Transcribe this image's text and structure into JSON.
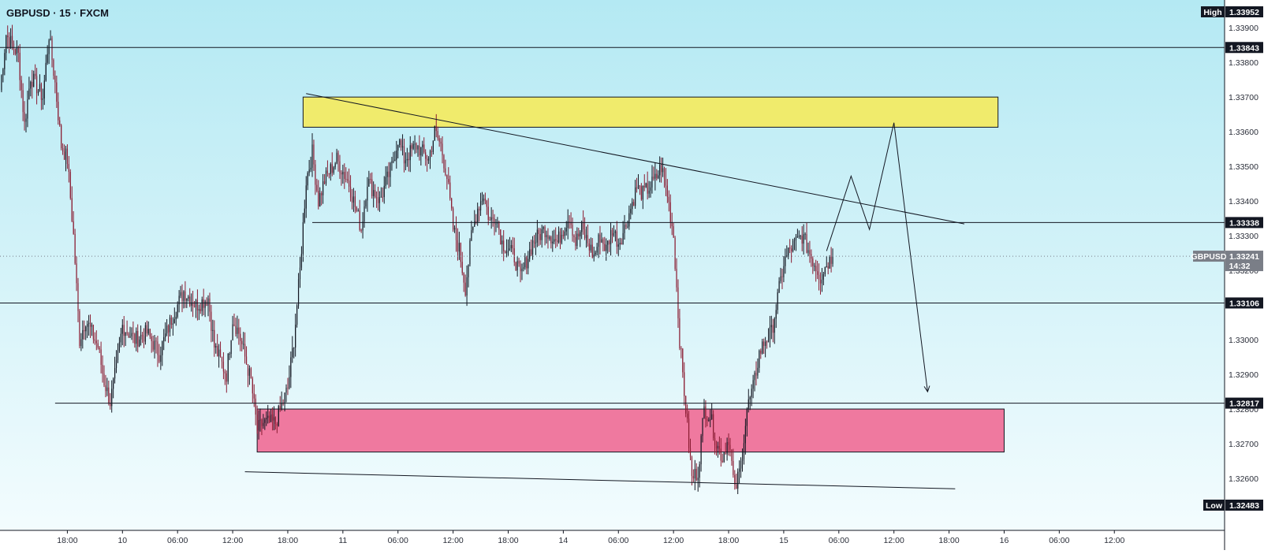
{
  "chart_data": {
    "type": "candlestick",
    "title": "GBPUSD · 15 · FXCM",
    "symbol": "GBPUSD",
    "ylim": [
      1.3245,
      1.3398
    ],
    "xlim": [
      -14,
      186
    ],
    "y_ticks": [
      "1.33900",
      "1.33800",
      "1.33700",
      "1.33600",
      "1.33500",
      "1.33400",
      "1.33300",
      "1.33200",
      "1.33000",
      "1.32900",
      "1.32800",
      "1.32700",
      "1.32600"
    ],
    "x_ticks": [
      {
        "label": "18:00",
        "t": -3
      },
      {
        "label": "10",
        "t": 6
      },
      {
        "label": "06:00",
        "t": 15
      },
      {
        "label": "12:00",
        "t": 24
      },
      {
        "label": "18:00",
        "t": 33
      },
      {
        "label": "11",
        "t": 42
      },
      {
        "label": "06:00",
        "t": 51
      },
      {
        "label": "12:00",
        "t": 60
      },
      {
        "label": "18:00",
        "t": 69
      },
      {
        "label": "14",
        "t": 78
      },
      {
        "label": "06:00",
        "t": 87
      },
      {
        "label": "12:00",
        "t": 96
      },
      {
        "label": "18:00",
        "t": 105
      },
      {
        "label": "15",
        "t": 114
      },
      {
        "label": "06:00",
        "t": 123
      },
      {
        "label": "12:00",
        "t": 132
      },
      {
        "label": "18:00",
        "t": 141
      },
      {
        "label": "16",
        "t": 150
      },
      {
        "label": "06:00",
        "t": 159
      },
      {
        "label": "12:00",
        "t": 168
      }
    ],
    "high": {
      "label": "High",
      "value": "1.33952"
    },
    "low": {
      "label": "Low",
      "value": "1.32483"
    },
    "current": {
      "label": "GBPUSD",
      "value": "1.33241",
      "countdown": "14:32",
      "price": 1.33241
    },
    "levels": [
      {
        "value": 1.33843,
        "label": "1.33843",
        "from_t": -14
      },
      {
        "value": 1.33338,
        "label": "1.33338",
        "from_t": 37
      },
      {
        "value": 1.33106,
        "label": "1.33106",
        "from_t": -14
      },
      {
        "value": 1.32817,
        "label": "1.32817",
        "from_t": -5
      }
    ],
    "zones": [
      {
        "name": "supply",
        "color": "#f0eb6c",
        "t0": 35.5,
        "t1": 149,
        "top": 1.337,
        "bottom": 1.33613
      },
      {
        "name": "demand",
        "color": "#ef799f",
        "t0": 28,
        "t1": 150,
        "top": 1.328,
        "bottom": 1.32676
      }
    ],
    "trendlines": [
      {
        "name": "upper-trendline",
        "t0": 36,
        "p0": 1.3371,
        "t1": 143.5,
        "p1": 1.33334
      },
      {
        "name": "lower-trendline",
        "t0": 26,
        "p0": 1.32619,
        "t1": 142,
        "p1": 1.3257
      }
    ],
    "projection": [
      [
        121,
        1.33256
      ],
      [
        125,
        1.33472
      ],
      [
        128,
        1.33318
      ],
      [
        132,
        1.33626
      ],
      [
        137.5,
        1.3285
      ]
    ],
    "colors": {
      "up": "#131722",
      "down": "#8a1c32",
      "bg_top": "#b4e9f3",
      "bg_bottom": "#f3fcfe",
      "line": "#131722",
      "tag": "#131722",
      "current_tag": "#7a7e87"
    },
    "ohlc_anchors": [
      [
        -14,
        1.3372
      ],
      [
        -13,
        1.3388
      ],
      [
        -11,
        1.3382
      ],
      [
        -10,
        1.3362
      ],
      [
        -9,
        1.3376
      ],
      [
        -7,
        1.337
      ],
      [
        -6,
        1.3388
      ],
      [
        -5,
        1.3374
      ],
      [
        -4,
        1.3356
      ],
      [
        -3,
        1.3352
      ],
      [
        -2,
        1.333
      ],
      [
        -1,
        1.33
      ],
      [
        0,
        1.3306
      ],
      [
        1,
        1.3302
      ],
      [
        2,
        1.3298
      ],
      [
        3,
        1.3288
      ],
      [
        4,
        1.3282
      ],
      [
        5,
        1.3292
      ],
      [
        6,
        1.3304
      ],
      [
        8,
        1.33
      ],
      [
        10,
        1.3302
      ],
      [
        12,
        1.3296
      ],
      [
        14,
        1.3306
      ],
      [
        16,
        1.3314
      ],
      [
        18,
        1.331
      ],
      [
        20,
        1.3312
      ],
      [
        21,
        1.3298
      ],
      [
        23,
        1.329
      ],
      [
        24,
        1.3306
      ],
      [
        25,
        1.3302
      ],
      [
        27,
        1.3288
      ],
      [
        28,
        1.3274
      ],
      [
        29,
        1.3276
      ],
      [
        31,
        1.3276
      ],
      [
        33,
        1.3286
      ],
      [
        34,
        1.33
      ],
      [
        35,
        1.332
      ],
      [
        36,
        1.3346
      ],
      [
        37,
        1.3354
      ],
      [
        38,
        1.334
      ],
      [
        39,
        1.3346
      ],
      [
        41,
        1.3352
      ],
      [
        43,
        1.3345
      ],
      [
        45,
        1.3332
      ],
      [
        46,
        1.3346
      ],
      [
        48,
        1.334
      ],
      [
        50,
        1.335
      ],
      [
        51,
        1.3358
      ],
      [
        52,
        1.3352
      ],
      [
        54,
        1.3356
      ],
      [
        56,
        1.3352
      ],
      [
        57,
        1.336
      ],
      [
        58,
        1.3356
      ],
      [
        59,
        1.3347
      ],
      [
        60,
        1.3332
      ],
      [
        61,
        1.3326
      ],
      [
        62,
        1.3315
      ],
      [
        63,
        1.333
      ],
      [
        64,
        1.3338
      ],
      [
        65,
        1.3342
      ],
      [
        66,
        1.3334
      ],
      [
        67,
        1.3336
      ],
      [
        68,
        1.3328
      ],
      [
        70,
        1.3324
      ],
      [
        71,
        1.3318
      ],
      [
        73,
        1.3328
      ],
      [
        75,
        1.3332
      ],
      [
        77,
        1.3328
      ],
      [
        79,
        1.3336
      ],
      [
        80,
        1.3328
      ],
      [
        81,
        1.3332
      ],
      [
        82,
        1.3328
      ],
      [
        83,
        1.3324
      ],
      [
        84,
        1.333
      ],
      [
        85,
        1.3326
      ],
      [
        86,
        1.3332
      ],
      [
        87,
        1.3328
      ],
      [
        88,
        1.3332
      ],
      [
        89,
        1.3338
      ],
      [
        90,
        1.3344
      ],
      [
        91,
        1.3342
      ],
      [
        92,
        1.3344
      ],
      [
        93,
        1.3346
      ],
      [
        94,
        1.335
      ],
      [
        95,
        1.3342
      ],
      [
        96,
        1.333
      ],
      [
        97,
        1.33
      ],
      [
        98,
        1.328
      ],
      [
        99,
        1.326
      ],
      [
        100,
        1.3262
      ],
      [
        101,
        1.328
      ],
      [
        102,
        1.3278
      ],
      [
        103,
        1.327
      ],
      [
        104,
        1.3266
      ],
      [
        105,
        1.3272
      ],
      [
        106,
        1.3256
      ],
      [
        107,
        1.3264
      ],
      [
        108,
        1.328
      ],
      [
        109,
        1.3286
      ],
      [
        110,
        1.3296
      ],
      [
        111,
        1.33
      ],
      [
        112,
        1.3302
      ],
      [
        113,
        1.3312
      ],
      [
        114,
        1.3322
      ],
      [
        115,
        1.3326
      ],
      [
        116,
        1.3328
      ],
      [
        117,
        1.333
      ],
      [
        118,
        1.3326
      ],
      [
        119,
        1.3322
      ],
      [
        120,
        1.3318
      ],
      [
        121,
        1.3322
      ],
      [
        122,
        1.3324
      ]
    ]
  }
}
